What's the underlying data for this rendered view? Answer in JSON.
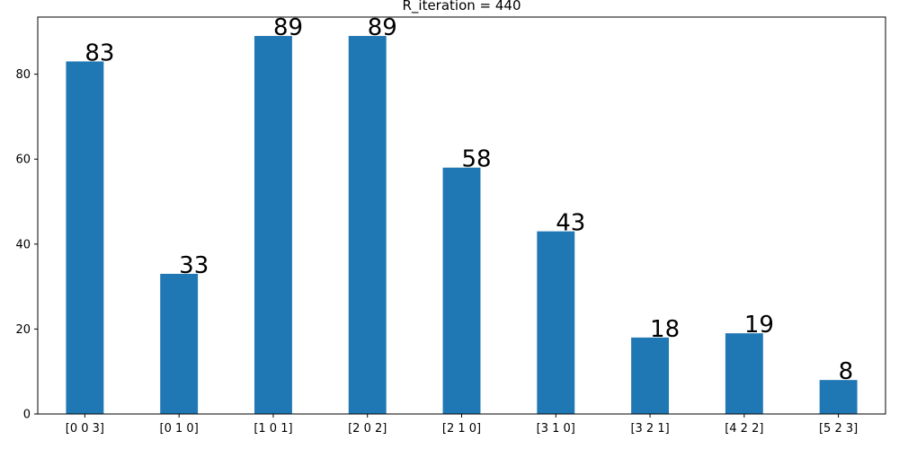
{
  "chart_data": {
    "type": "bar",
    "title": "R_iteration = 440",
    "xlabel": "",
    "ylabel": "",
    "categories": [
      "[0 0 3]",
      "[0 1 0]",
      "[1 0 1]",
      "[2 0 2]",
      "[2 1 0]",
      "[3 1 0]",
      "[3 2 1]",
      "[4 2 2]",
      "[5 2 3]"
    ],
    "values": [
      83,
      33,
      89,
      89,
      58,
      43,
      18,
      19,
      8
    ],
    "data_labels": [
      "83",
      "33",
      "89",
      "89",
      "58",
      "43",
      "18",
      "19",
      "8"
    ],
    "ylim": [
      0,
      93.45
    ],
    "yticks": [
      0,
      20,
      40,
      60,
      80
    ],
    "ytick_labels": [
      "0",
      "20",
      "40",
      "60",
      "80"
    ],
    "grid": false,
    "legend": "none",
    "bar_color": "#1f77b4"
  }
}
